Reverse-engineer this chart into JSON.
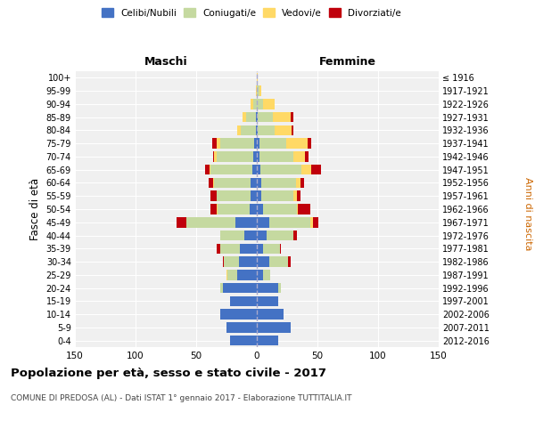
{
  "age_groups": [
    "0-4",
    "5-9",
    "10-14",
    "15-19",
    "20-24",
    "25-29",
    "30-34",
    "35-39",
    "40-44",
    "45-49",
    "50-54",
    "55-59",
    "60-64",
    "65-69",
    "70-74",
    "75-79",
    "80-84",
    "85-89",
    "90-94",
    "95-99",
    "100+"
  ],
  "birth_years": [
    "2012-2016",
    "2007-2011",
    "2002-2006",
    "1997-2001",
    "1992-1996",
    "1987-1991",
    "1982-1986",
    "1977-1981",
    "1972-1976",
    "1967-1971",
    "1962-1966",
    "1957-1961",
    "1952-1956",
    "1947-1951",
    "1942-1946",
    "1937-1941",
    "1932-1936",
    "1927-1931",
    "1922-1926",
    "1917-1921",
    "≤ 1916"
  ],
  "male": {
    "celibi": [
      22,
      25,
      30,
      22,
      28,
      16,
      15,
      14,
      10,
      18,
      6,
      5,
      5,
      4,
      3,
      2,
      1,
      1,
      0,
      0,
      0
    ],
    "coniugati": [
      0,
      0,
      0,
      0,
      2,
      8,
      12,
      16,
      20,
      40,
      26,
      28,
      30,
      34,
      30,
      28,
      12,
      8,
      3,
      0,
      0
    ],
    "vedovi": [
      0,
      0,
      0,
      0,
      0,
      1,
      0,
      0,
      0,
      0,
      1,
      0,
      1,
      1,
      2,
      3,
      3,
      3,
      2,
      1,
      0
    ],
    "divorziati": [
      0,
      0,
      0,
      0,
      0,
      0,
      1,
      3,
      0,
      8,
      5,
      5,
      4,
      4,
      1,
      4,
      0,
      0,
      0,
      0,
      0
    ]
  },
  "female": {
    "nubili": [
      18,
      28,
      22,
      18,
      18,
      5,
      10,
      5,
      8,
      10,
      5,
      4,
      4,
      3,
      2,
      2,
      1,
      1,
      0,
      0,
      0
    ],
    "coniugate": [
      0,
      0,
      0,
      0,
      2,
      6,
      16,
      14,
      22,
      34,
      28,
      26,
      28,
      34,
      28,
      22,
      14,
      12,
      5,
      2,
      0
    ],
    "vedove": [
      0,
      0,
      0,
      0,
      0,
      0,
      0,
      0,
      0,
      2,
      1,
      3,
      4,
      8,
      10,
      18,
      14,
      15,
      10,
      2,
      1
    ],
    "divorziate": [
      0,
      0,
      0,
      0,
      0,
      0,
      2,
      1,
      3,
      5,
      10,
      3,
      3,
      8,
      3,
      3,
      1,
      2,
      0,
      0,
      0
    ]
  },
  "colors": {
    "celibi": "#4472C4",
    "coniugati": "#c5d9a0",
    "vedovi": "#FFD966",
    "divorziati": "#C0000C"
  },
  "title": "Popolazione per età, sesso e stato civile - 2017",
  "subtitle": "COMUNE DI PREDOSA (AL) - Dati ISTAT 1° gennaio 2017 - Elaborazione TUTTITALIA.IT",
  "xlabel_left": "Maschi",
  "xlabel_right": "Femmine",
  "ylabel_left": "Fasce di età",
  "ylabel_right": "Anni di nascita",
  "xlim": 150,
  "legend_labels": [
    "Celibi/Nubili",
    "Coniugati/e",
    "Vedovi/e",
    "Divorziati/e"
  ],
  "bg_color": "#f0f0f0",
  "grid_color": "#cccccc"
}
